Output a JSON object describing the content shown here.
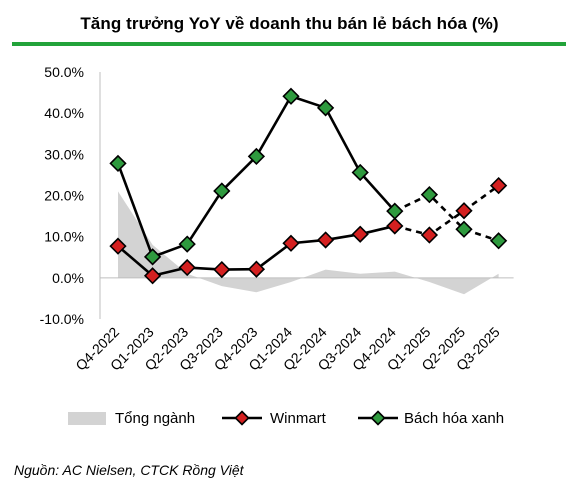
{
  "title": "Tăng trưởng YoY về doanh thu bán lẻ bách hóa (%)",
  "source": "Nguồn: AC Nielsen, CTCK Rồng Việt",
  "colors": {
    "accent_rule": "#22a33a",
    "area_fill": "#d3d3d3",
    "line": "#000000",
    "winmart_marker": "#d42020",
    "bhx_marker": "#2e9a3e"
  },
  "chart_data": {
    "type": "line",
    "title": "Tăng trưởng YoY về doanh thu bán lẻ bách hóa (%)",
    "categories": [
      "Q4-2022",
      "Q1-2023",
      "Q2-2023",
      "Q3-2023",
      "Q4-2023",
      "Q1-2024",
      "Q2-2024",
      "Q3-2024",
      "Q4-2024",
      "Q1-2025",
      "Q2-2025",
      "Q3-2025"
    ],
    "ylim": [
      -10,
      50
    ],
    "yticks": [
      -10,
      0,
      10,
      20,
      30,
      40,
      50
    ],
    "ytick_labels": [
      "-10.0%",
      "0.0%",
      "10.0%",
      "20.0%",
      "30.0%",
      "40.0%",
      "50.0%"
    ],
    "grid": false,
    "legend_position": "bottom",
    "series": [
      {
        "name": "Tổng ngành",
        "kind": "area",
        "values": [
          21,
          8,
          1,
          -2,
          -3.5,
          -1,
          2,
          1,
          1.5,
          -1,
          -4,
          1
        ]
      },
      {
        "name": "Winmart",
        "kind": "line",
        "dashed_from_index": 8,
        "values": [
          7.7,
          0.5,
          2.5,
          2.0,
          2.1,
          8.4,
          9.2,
          10.6,
          12.6,
          10.4,
          16.3,
          22.4
        ]
      },
      {
        "name": "Bách hóa xanh",
        "kind": "line",
        "dashed_from_index": 8,
        "values": [
          27.8,
          5.1,
          8.2,
          21.1,
          29.5,
          44.1,
          41.3,
          25.6,
          16.2,
          20.2,
          11.8,
          9.0
        ]
      }
    ]
  }
}
